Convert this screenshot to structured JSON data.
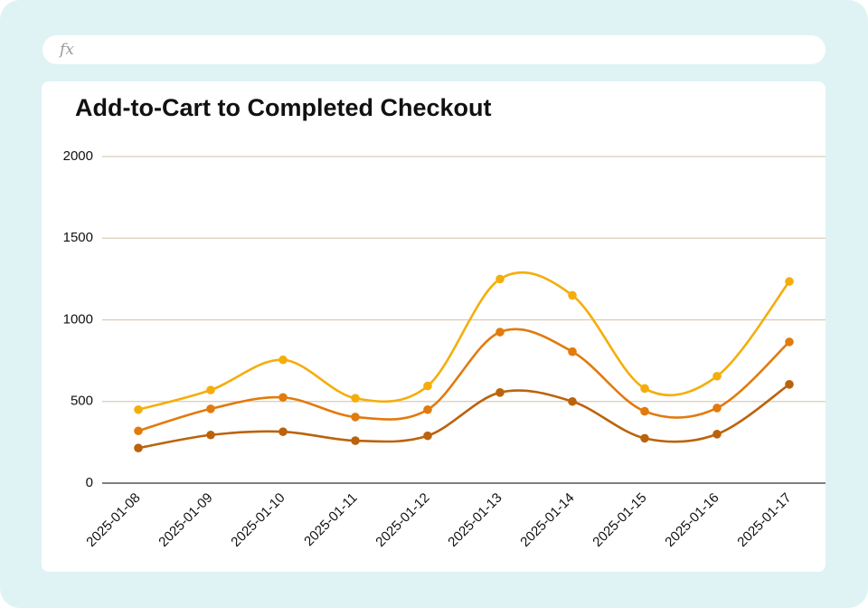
{
  "formula_bar": {
    "icon": "fx"
  },
  "chart_data": {
    "type": "line",
    "title": "Add-to-Cart to Completed Checkout",
    "categories": [
      "2025-01-08",
      "2025-01-09",
      "2025-01-10",
      "2025-01-11",
      "2025-01-12",
      "2025-01-13",
      "2025-01-14",
      "2025-01-15",
      "2025-01-16",
      "2025-01-17"
    ],
    "series": [
      {
        "color": "#f4ae0c",
        "values": [
          450,
          570,
          755,
          520,
          595,
          1250,
          1150,
          580,
          655,
          1235
        ]
      },
      {
        "color": "#e27a0c",
        "values": [
          320,
          455,
          525,
          405,
          450,
          925,
          805,
          440,
          460,
          865
        ]
      },
      {
        "color": "#bb630c",
        "values": [
          215,
          295,
          315,
          260,
          290,
          555,
          500,
          275,
          300,
          605
        ]
      }
    ],
    "ylim": [
      0,
      2000
    ],
    "yticks": [
      0,
      500,
      1000,
      1500,
      2000
    ],
    "grid": true,
    "smooth": true
  }
}
